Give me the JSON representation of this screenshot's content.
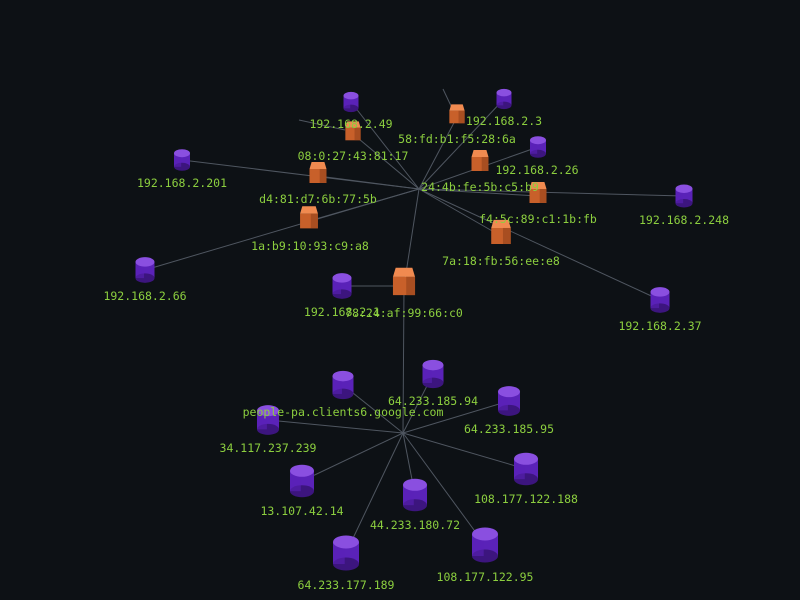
{
  "colors": {
    "background": "#0d1115",
    "edge": "#4f5660",
    "label": "#8ccf3f",
    "host_top": "#8a4fe0",
    "host_side": "#5a22b8",
    "host_bottom": "#3c157e",
    "mac_top": "#f08a50",
    "mac_front": "#c8602a",
    "mac_side": "#8e3f1a"
  },
  "nodes": [
    {
      "id": "ip49",
      "kind": "host",
      "label": "192.168.2.49"
    },
    {
      "id": "ip3",
      "kind": "host",
      "label": "192.168.2.3"
    },
    {
      "id": "mac58",
      "kind": "mac",
      "label": "58:fd:b1:f5:28:6a"
    },
    {
      "id": "mac08",
      "kind": "mac",
      "label": "08:0:27:43:81:17"
    },
    {
      "id": "ip26",
      "kind": "host",
      "label": "192.168.2.26"
    },
    {
      "id": "ip201",
      "kind": "host",
      "label": "192.168.2.201"
    },
    {
      "id": "macd4",
      "kind": "mac",
      "label": "d4:81:d7:6b:77:5b"
    },
    {
      "id": "mac24",
      "kind": "mac",
      "label": "24:4b:fe:5b:c5:b9"
    },
    {
      "id": "macf4",
      "kind": "mac",
      "label": "f4:5c:89:c1:1b:fb"
    },
    {
      "id": "ip248",
      "kind": "host",
      "label": "192.168.2.248"
    },
    {
      "id": "mac1a",
      "kind": "mac",
      "label": "1a:b9:10:93:c9:a8"
    },
    {
      "id": "mac7a",
      "kind": "mac",
      "label": "7a:18:fb:56:ee:e8"
    },
    {
      "id": "ip66",
      "kind": "host",
      "label": "192.168.2.66"
    },
    {
      "id": "ip1",
      "kind": "host",
      "label": "192.168.2.1"
    },
    {
      "id": "mac78",
      "kind": "mac",
      "label": "78:24:af:99:66:c0"
    },
    {
      "id": "ip37",
      "kind": "host",
      "label": "192.168.2.37"
    },
    {
      "id": "g94",
      "kind": "host",
      "label": "64.233.185.94"
    },
    {
      "id": "g95",
      "kind": "host",
      "label": "64.233.185.95"
    },
    {
      "id": "ppl",
      "kind": "host",
      "label": "people-pa.clients6.google.com"
    },
    {
      "id": "a34",
      "kind": "host",
      "label": "34.117.237.239"
    },
    {
      "id": "m13",
      "kind": "host",
      "label": "13.107.42.14"
    },
    {
      "id": "g44",
      "kind": "host",
      "label": "44.233.180.72"
    },
    {
      "id": "f188",
      "kind": "host",
      "label": "108.177.122.188"
    },
    {
      "id": "f95",
      "kind": "host",
      "label": "108.177.122.95"
    },
    {
      "id": "g189",
      "kind": "host",
      "label": "64.233.177.189"
    }
  ],
  "edges": [
    [
      "mac24",
      "mac58"
    ],
    [
      "mac24",
      "mac08"
    ],
    [
      "mac24",
      "macd4"
    ],
    [
      "mac24",
      "mac1a"
    ],
    [
      "mac24",
      "mac78"
    ],
    [
      "mac24",
      "mac7a"
    ],
    [
      "mac24",
      "macf4"
    ],
    [
      "mac24",
      "ip26"
    ],
    [
      "mac24",
      "ip201"
    ],
    [
      "mac24",
      "ip49"
    ],
    [
      "mac24",
      "ip3"
    ],
    [
      "mac24",
      "ip248"
    ],
    [
      "mac24",
      "ip66"
    ],
    [
      "mac24",
      "ip37"
    ],
    [
      "mac78",
      "ip1"
    ],
    [
      "mac78",
      "hub"
    ],
    [
      "hub",
      "g94"
    ],
    [
      "hub",
      "g95"
    ],
    [
      "hub",
      "ppl"
    ],
    [
      "hub",
      "a34"
    ],
    [
      "hub",
      "m13"
    ],
    [
      "hub",
      "g44"
    ],
    [
      "hub",
      "f188"
    ],
    [
      "hub",
      "f95"
    ],
    [
      "hub",
      "g189"
    ]
  ]
}
